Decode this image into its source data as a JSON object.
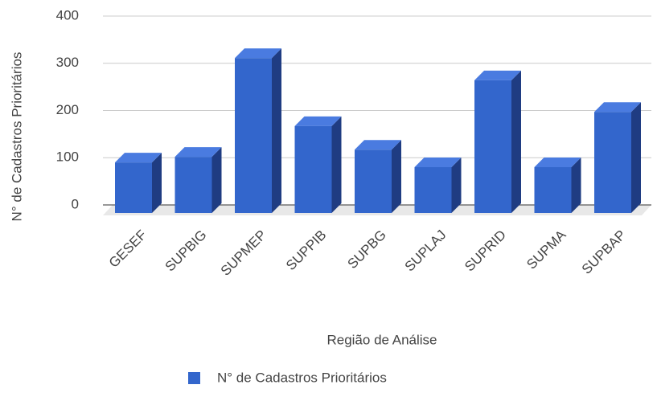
{
  "chart_data": {
    "type": "bar",
    "categories": [
      "GESEF",
      "SUPBIG",
      "SUPMEP",
      "SUPPIB",
      "SUPBG",
      "SUPLAJ",
      "SUPRID",
      "SUPMA",
      "SUPBAP"
    ],
    "series": [
      {
        "name": "N° de Cadastros Prioritários",
        "color": "#3366cc",
        "values": [
          107,
          119,
          328,
          184,
          134,
          97,
          281,
          97,
          214
        ]
      }
    ],
    "x_label": "Região de Análise",
    "y_label": "N° de Cadastros Prioritários",
    "ylim": [
      0,
      400
    ],
    "yticks": [
      0,
      100,
      200,
      300,
      400
    ],
    "grid": true,
    "legend": "bottom"
  }
}
